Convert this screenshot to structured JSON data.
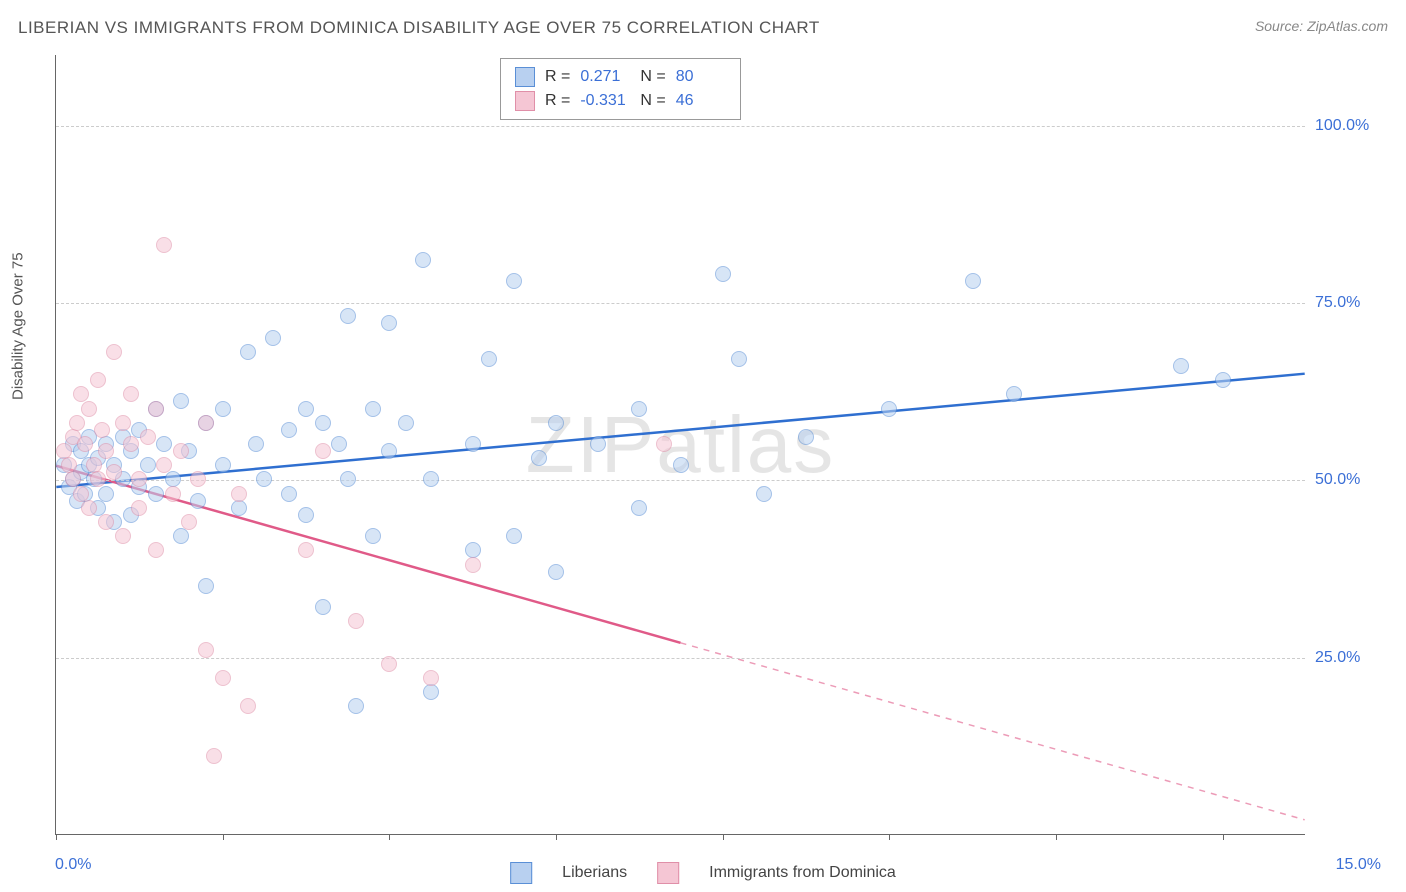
{
  "title": "LIBERIAN VS IMMIGRANTS FROM DOMINICA DISABILITY AGE OVER 75 CORRELATION CHART",
  "source": "Source: ZipAtlas.com",
  "watermark": "ZIPatlas",
  "yaxis_label": "Disability Age Over 75",
  "chart": {
    "type": "scatter",
    "xlim": [
      0,
      15
    ],
    "ylim": [
      0,
      110
    ],
    "x_ticks": [
      0,
      2,
      4,
      6,
      8,
      10,
      12,
      14
    ],
    "x_tick_labels": {
      "0": "0.0%",
      "15": "15.0%"
    },
    "y_gridlines": [
      25,
      50,
      75,
      100
    ],
    "y_tick_labels": {
      "25": "25.0%",
      "50": "50.0%",
      "75": "75.0%",
      "100": "100.0%"
    },
    "background_color": "#ffffff",
    "grid_color": "#cccccc",
    "axis_color": "#666666",
    "tick_label_color": "#3b6fd6",
    "marker_radius": 8,
    "marker_opacity": 0.55,
    "line_width": 2.5
  },
  "series": [
    {
      "name": "Liberians",
      "fill": "#b8d0f0",
      "stroke": "#5a8fd6",
      "line_color": "#2f6fd0",
      "R": "0.271",
      "N": "80",
      "regression": {
        "x1": 0,
        "y1": 49,
        "x2": 15,
        "y2": 65,
        "solid_until": 15
      },
      "points": [
        [
          0.1,
          52
        ],
        [
          0.15,
          49
        ],
        [
          0.2,
          55
        ],
        [
          0.2,
          50
        ],
        [
          0.25,
          47
        ],
        [
          0.3,
          54
        ],
        [
          0.3,
          51
        ],
        [
          0.35,
          48
        ],
        [
          0.4,
          52
        ],
        [
          0.4,
          56
        ],
        [
          0.45,
          50
        ],
        [
          0.5,
          53
        ],
        [
          0.5,
          46
        ],
        [
          0.6,
          55
        ],
        [
          0.6,
          48
        ],
        [
          0.7,
          52
        ],
        [
          0.7,
          44
        ],
        [
          0.8,
          56
        ],
        [
          0.8,
          50
        ],
        [
          0.9,
          54
        ],
        [
          0.9,
          45
        ],
        [
          1.0,
          57
        ],
        [
          1.0,
          49
        ],
        [
          1.1,
          52
        ],
        [
          1.2,
          60
        ],
        [
          1.2,
          48
        ],
        [
          1.3,
          55
        ],
        [
          1.4,
          50
        ],
        [
          1.5,
          61
        ],
        [
          1.5,
          42
        ],
        [
          1.6,
          54
        ],
        [
          1.7,
          47
        ],
        [
          1.8,
          58
        ],
        [
          1.8,
          35
        ],
        [
          2.0,
          52
        ],
        [
          2.0,
          60
        ],
        [
          2.2,
          46
        ],
        [
          2.3,
          68
        ],
        [
          2.4,
          55
        ],
        [
          2.5,
          50
        ],
        [
          2.6,
          70
        ],
        [
          2.8,
          57
        ],
        [
          2.8,
          48
        ],
        [
          3.0,
          60
        ],
        [
          3.0,
          45
        ],
        [
          3.2,
          58
        ],
        [
          3.2,
          32
        ],
        [
          3.4,
          55
        ],
        [
          3.5,
          73
        ],
        [
          3.5,
          50
        ],
        [
          3.6,
          18
        ],
        [
          3.8,
          60
        ],
        [
          3.8,
          42
        ],
        [
          4.0,
          72
        ],
        [
          4.0,
          54
        ],
        [
          4.2,
          58
        ],
        [
          4.4,
          81
        ],
        [
          4.5,
          50
        ],
        [
          4.5,
          20
        ],
        [
          5.0,
          55
        ],
        [
          5.0,
          40
        ],
        [
          5.2,
          67
        ],
        [
          5.5,
          78
        ],
        [
          5.5,
          42
        ],
        [
          5.8,
          53
        ],
        [
          6.0,
          58
        ],
        [
          6.0,
          37
        ],
        [
          6.5,
          55
        ],
        [
          7.0,
          60
        ],
        [
          7.0,
          46
        ],
        [
          7.5,
          52
        ],
        [
          8.0,
          79
        ],
        [
          8.2,
          67
        ],
        [
          8.5,
          48
        ],
        [
          9.0,
          56
        ],
        [
          10.0,
          60
        ],
        [
          11.0,
          78
        ],
        [
          11.5,
          62
        ],
        [
          13.5,
          66
        ],
        [
          14.0,
          64
        ]
      ]
    },
    {
      "name": "Immigrants from Dominica",
      "fill": "#f5c6d4",
      "stroke": "#e08fa8",
      "line_color": "#e05a88",
      "R": "-0.331",
      "N": "46",
      "regression": {
        "x1": 0,
        "y1": 52,
        "x2": 15,
        "y2": 2,
        "solid_until": 7.5
      },
      "points": [
        [
          0.1,
          54
        ],
        [
          0.15,
          52
        ],
        [
          0.2,
          56
        ],
        [
          0.2,
          50
        ],
        [
          0.25,
          58
        ],
        [
          0.3,
          62
        ],
        [
          0.3,
          48
        ],
        [
          0.35,
          55
        ],
        [
          0.4,
          60
        ],
        [
          0.4,
          46
        ],
        [
          0.45,
          52
        ],
        [
          0.5,
          64
        ],
        [
          0.5,
          50
        ],
        [
          0.55,
          57
        ],
        [
          0.6,
          54
        ],
        [
          0.6,
          44
        ],
        [
          0.7,
          68
        ],
        [
          0.7,
          51
        ],
        [
          0.8,
          58
        ],
        [
          0.8,
          42
        ],
        [
          0.9,
          55
        ],
        [
          0.9,
          62
        ],
        [
          1.0,
          50
        ],
        [
          1.0,
          46
        ],
        [
          1.1,
          56
        ],
        [
          1.2,
          60
        ],
        [
          1.2,
          40
        ],
        [
          1.3,
          52
        ],
        [
          1.3,
          83
        ],
        [
          1.4,
          48
        ],
        [
          1.5,
          54
        ],
        [
          1.6,
          44
        ],
        [
          1.7,
          50
        ],
        [
          1.8,
          26
        ],
        [
          1.8,
          58
        ],
        [
          1.9,
          11
        ],
        [
          2.0,
          22
        ],
        [
          2.2,
          48
        ],
        [
          2.3,
          18
        ],
        [
          3.0,
          40
        ],
        [
          3.2,
          54
        ],
        [
          3.6,
          30
        ],
        [
          4.0,
          24
        ],
        [
          4.5,
          22
        ],
        [
          5.0,
          38
        ],
        [
          7.3,
          55
        ]
      ]
    }
  ],
  "stats_legend": {
    "r_label": "R =",
    "n_label": "N ="
  },
  "series_legend": {
    "s1": "Liberians",
    "s2": "Immigrants from Dominica"
  }
}
